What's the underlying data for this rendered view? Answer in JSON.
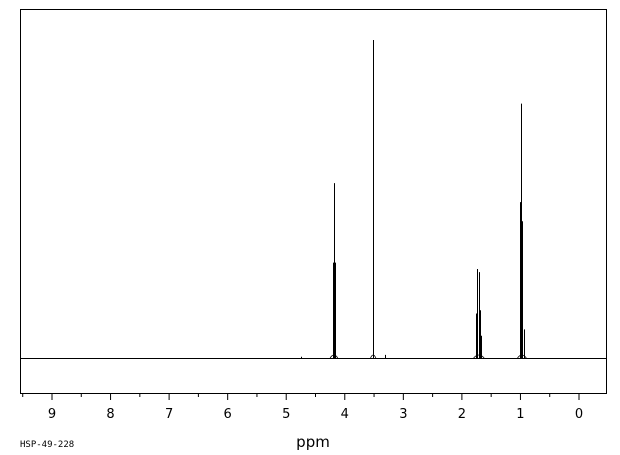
{
  "chart_data": {
    "type": "line",
    "xlabel": "ppm",
    "xlim": [
      9.5,
      -0.45
    ],
    "x_reversed": true,
    "ticks": [
      "9",
      "8",
      "7",
      "6",
      "5",
      "4",
      "3",
      "2",
      "1",
      "0"
    ],
    "tick_values": [
      9,
      8,
      7,
      6,
      5,
      4,
      3,
      2,
      1,
      0
    ],
    "baseline_level": 0,
    "ylim": [
      -0.1,
      1.05
    ],
    "grid": false,
    "peaks": [
      {
        "x": 4.75,
        "y": 0.004
      },
      {
        "x": 4.205,
        "y": 0.3
      },
      {
        "x": 4.185,
        "y": 0.55
      },
      {
        "x": 4.165,
        "y": 0.3
      },
      {
        "x": 3.525,
        "y": 1.0
      },
      {
        "x": 3.51,
        "y": 0.14
      },
      {
        "x": 3.32,
        "y": 0.01
      },
      {
        "x": 1.755,
        "y": 0.14
      },
      {
        "x": 1.735,
        "y": 0.28
      },
      {
        "x": 1.715,
        "y": 0.27
      },
      {
        "x": 1.695,
        "y": 0.15
      },
      {
        "x": 1.675,
        "y": 0.07
      },
      {
        "x": 1.005,
        "y": 0.49
      },
      {
        "x": 0.985,
        "y": 0.8
      },
      {
        "x": 0.965,
        "y": 0.43
      },
      {
        "x": 0.945,
        "y": 0.09
      }
    ]
  },
  "footer": {
    "code": "HSP-49-228"
  }
}
